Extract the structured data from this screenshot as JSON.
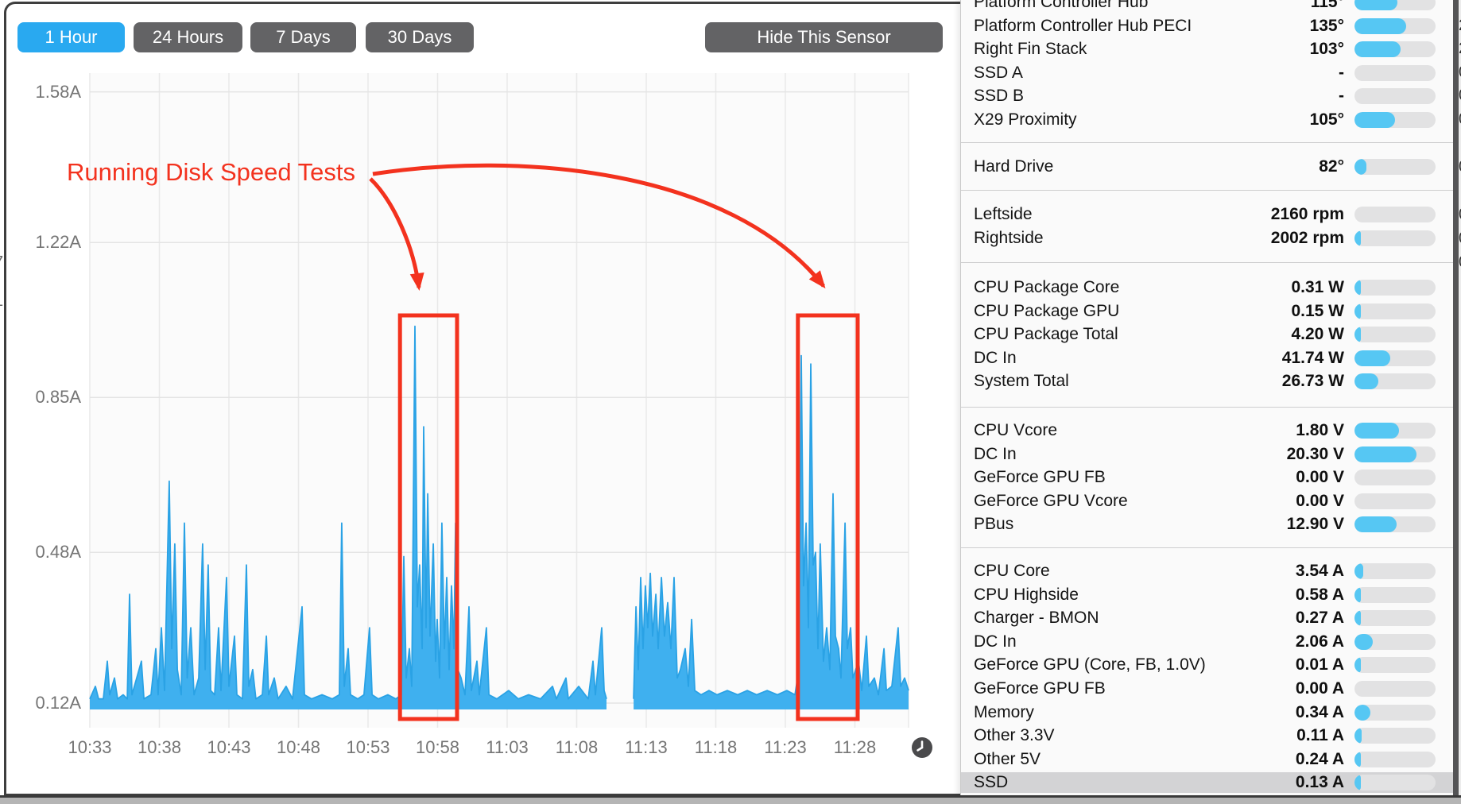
{
  "colors": {
    "accent_blue": "#29a9f0",
    "chart_blue": "#3fb0ef",
    "chart_blue_edge": "#2aa2e5",
    "bar_blue": "#56c7f3",
    "annotation_red": "#f3321e",
    "button_gray": "#636365"
  },
  "toolbar": {
    "range_buttons": [
      {
        "label": "1 Hour",
        "active": true
      },
      {
        "label": "24 Hours",
        "active": false
      },
      {
        "label": "7 Days",
        "active": false
      },
      {
        "label": "30 Days",
        "active": false
      }
    ],
    "hide_button_label": "Hide This Sensor"
  },
  "chart_data": {
    "type": "area",
    "unit": "A",
    "x_ticks": [
      "10:33",
      "10:38",
      "10:43",
      "10:48",
      "10:53",
      "10:58",
      "11:03",
      "11:08",
      "11:13",
      "11:18",
      "11:23",
      "11:28"
    ],
    "y_ticks": [
      "1.58A",
      "1.22A",
      "0.85A",
      "0.48A",
      "0.12A"
    ],
    "y_tick_values": [
      1.58,
      1.22,
      0.85,
      0.48,
      0.12
    ],
    "x_axis_note": "time of day, 5-minute gridlines",
    "grid": true,
    "legend": "none",
    "series_description": "SSD current draw in amps, minutes after 10:00",
    "segments": [
      [
        [
          33,
          0.13
        ],
        [
          33.4,
          0.16
        ],
        [
          33.63,
          0.13
        ],
        [
          33.97,
          0.13
        ],
        [
          34.26,
          0.22
        ],
        [
          34.43,
          0.14
        ],
        [
          34.77,
          0.18
        ],
        [
          35,
          0.13
        ],
        [
          35.4,
          0.14
        ],
        [
          35.69,
          0.13
        ],
        [
          35.86,
          0.38
        ],
        [
          36.03,
          0.14
        ],
        [
          36.37,
          0.18
        ],
        [
          36.71,
          0.22
        ],
        [
          36.89,
          0.13
        ],
        [
          37.4,
          0.14
        ],
        [
          37.74,
          0.25
        ],
        [
          37.91,
          0.14
        ],
        [
          38.14,
          0.3
        ],
        [
          38.37,
          0.15
        ],
        [
          38.71,
          0.65
        ],
        [
          38.89,
          0.25
        ],
        [
          39.11,
          0.5
        ],
        [
          39.29,
          0.2
        ],
        [
          39.57,
          0.14
        ],
        [
          39.8,
          0.55
        ],
        [
          40,
          0.18
        ],
        [
          40.26,
          0.3
        ],
        [
          40.49,
          0.14
        ],
        [
          40.83,
          0.18
        ],
        [
          41.11,
          0.5
        ],
        [
          41.29,
          0.2
        ],
        [
          41.51,
          0.45
        ],
        [
          41.69,
          0.15
        ],
        [
          41.97,
          0.14
        ],
        [
          42.26,
          0.3
        ],
        [
          42.43,
          0.15
        ],
        [
          42.83,
          0.42
        ],
        [
          43,
          0.16
        ],
        [
          43.4,
          0.28
        ],
        [
          43.57,
          0.14
        ],
        [
          43.97,
          0.13
        ],
        [
          44.26,
          0.45
        ],
        [
          44.43,
          0.16
        ],
        [
          44.71,
          0.2
        ],
        [
          44.94,
          0.13
        ],
        [
          45.4,
          0.14
        ],
        [
          45.69,
          0.28
        ],
        [
          45.86,
          0.14
        ],
        [
          46.26,
          0.18
        ],
        [
          46.54,
          0.13
        ],
        [
          47.11,
          0.16
        ],
        [
          47.57,
          0.13
        ],
        [
          48.26,
          0.35
        ],
        [
          48.43,
          0.14
        ],
        [
          48.94,
          0.13
        ],
        [
          49.69,
          0.14
        ],
        [
          50.43,
          0.13
        ],
        [
          50.94,
          0.14
        ],
        [
          51.11,
          0.55
        ],
        [
          51.29,
          0.16
        ],
        [
          51.57,
          0.25
        ],
        [
          51.74,
          0.14
        ],
        [
          52.26,
          0.13
        ],
        [
          52.71,
          0.14
        ],
        [
          53.11,
          0.3
        ],
        [
          53.29,
          0.14
        ],
        [
          53.74,
          0.13
        ],
        [
          54.43,
          0.14
        ],
        [
          55,
          0.13
        ],
        [
          55.4,
          0.14
        ],
        [
          55.57,
          0.47
        ],
        [
          55.74,
          0.18
        ],
        [
          55.97,
          0.25
        ],
        [
          56.14,
          0.16
        ],
        [
          56.37,
          1.02
        ],
        [
          56.54,
          0.35
        ],
        [
          56.71,
          0.45
        ],
        [
          56.89,
          0.25
        ],
        [
          57,
          0.78
        ],
        [
          57.17,
          0.3
        ],
        [
          57.29,
          0.62
        ],
        [
          57.46,
          0.28
        ],
        [
          57.69,
          0.5
        ],
        [
          57.86,
          0.22
        ],
        [
          57.97,
          0.32
        ],
        [
          58.14,
          0.18
        ],
        [
          58.31,
          0.55
        ],
        [
          58.49,
          0.25
        ],
        [
          58.66,
          0.42
        ],
        [
          58.83,
          0.2
        ],
        [
          59,
          0.4
        ],
        [
          59.17,
          0.25
        ],
        [
          59.29,
          0.55
        ],
        [
          59.46,
          0.2
        ],
        [
          59.69,
          0.18
        ],
        [
          59.97,
          0.14
        ],
        [
          60.26,
          0.35
        ],
        [
          60.43,
          0.15
        ],
        [
          60.83,
          0.22
        ],
        [
          61,
          0.14
        ],
        [
          61.51,
          0.3
        ],
        [
          61.69,
          0.14
        ],
        [
          62.26,
          0.13
        ],
        [
          63.11,
          0.15
        ],
        [
          63.8,
          0.13
        ],
        [
          64.54,
          0.14
        ],
        [
          65.4,
          0.13
        ],
        [
          66.26,
          0.16
        ],
        [
          66.54,
          0.13
        ],
        [
          67.23,
          0.18
        ],
        [
          67.4,
          0.13
        ],
        [
          68.14,
          0.16
        ],
        [
          68.83,
          0.13
        ],
        [
          69.17,
          0.22
        ],
        [
          69.34,
          0.14
        ],
        [
          69.8,
          0.3
        ],
        [
          69.97,
          0.15
        ],
        [
          70.14,
          0.13
        ]
      ],
      [
        [
          72.09,
          0.13
        ],
        [
          72.26,
          0.35
        ],
        [
          72.43,
          0.2
        ],
        [
          72.6,
          0.42
        ],
        [
          72.77,
          0.25
        ],
        [
          72.94,
          0.4
        ],
        [
          73.11,
          0.3
        ],
        [
          73.29,
          0.43
        ],
        [
          73.46,
          0.28
        ],
        [
          73.69,
          0.38
        ],
        [
          73.86,
          0.25
        ],
        [
          74.09,
          0.42
        ],
        [
          74.31,
          0.28
        ],
        [
          74.54,
          0.36
        ],
        [
          74.77,
          0.25
        ],
        [
          75,
          0.42
        ],
        [
          75.23,
          0.18
        ],
        [
          75.46,
          0.2
        ],
        [
          75.8,
          0.25
        ],
        [
          76.03,
          0.16
        ],
        [
          76.26,
          0.32
        ],
        [
          76.49,
          0.15
        ],
        [
          76.94,
          0.14
        ],
        [
          77.51,
          0.15
        ],
        [
          78.09,
          0.14
        ],
        [
          78.83,
          0.15
        ],
        [
          79.57,
          0.14
        ],
        [
          80.26,
          0.15
        ],
        [
          80.94,
          0.14
        ],
        [
          81.69,
          0.15
        ],
        [
          82.43,
          0.14
        ],
        [
          83.11,
          0.15
        ],
        [
          83.69,
          0.14
        ],
        [
          83.97,
          0.2
        ],
        [
          84.14,
          0.95
        ],
        [
          84.31,
          0.4
        ],
        [
          84.49,
          0.55
        ],
        [
          84.66,
          0.3
        ],
        [
          84.83,
          0.93
        ],
        [
          85,
          0.45
        ],
        [
          85.17,
          0.48
        ],
        [
          85.34,
          0.25
        ],
        [
          85.51,
          0.5
        ],
        [
          85.74,
          0.22
        ],
        [
          85.97,
          0.3
        ],
        [
          86.2,
          0.2
        ],
        [
          86.43,
          0.62
        ],
        [
          86.6,
          0.28
        ],
        [
          86.83,
          0.25
        ],
        [
          87,
          0.18
        ],
        [
          87.29,
          0.55
        ],
        [
          87.46,
          0.25
        ],
        [
          87.69,
          0.3
        ],
        [
          87.86,
          0.18
        ],
        [
          88.26,
          0.22
        ],
        [
          88.49,
          0.15
        ],
        [
          88.83,
          0.28
        ],
        [
          89,
          0.16
        ],
        [
          89.4,
          0.18
        ],
        [
          89.69,
          0.14
        ],
        [
          90.09,
          0.25
        ],
        [
          90.26,
          0.15
        ],
        [
          90.66,
          0.16
        ],
        [
          91.11,
          0.3
        ],
        [
          91.29,
          0.16
        ],
        [
          91.57,
          0.18
        ],
        [
          91.86,
          0.15
        ]
      ]
    ],
    "annotations": {
      "label": "Running Disk Speed Tests",
      "boxes": [
        {
          "t_from": 55.3,
          "t_to": 59.4
        },
        {
          "t_from": 83.9,
          "t_to": 88.2
        }
      ]
    }
  },
  "sensor_panel": {
    "sections": [
      {
        "name": "temperatures",
        "rows": [
          {
            "label": "Platform Controller Hub",
            "value": "115°",
            "bar": 0.53
          },
          {
            "label": "Platform Controller Hub PECI",
            "value": "135°",
            "bar": 0.64
          },
          {
            "label": "Right Fin Stack",
            "value": "103°",
            "bar": 0.57
          },
          {
            "label": "SSD A",
            "value": "-",
            "bar": 0
          },
          {
            "label": "SSD B",
            "value": "-",
            "bar": 0
          },
          {
            "label": "X29 Proximity",
            "value": "105°",
            "bar": 0.5
          }
        ]
      },
      {
        "name": "hard-drive",
        "rows": [
          {
            "label": "Hard Drive",
            "value": "82°",
            "bar": 0.15
          }
        ]
      },
      {
        "name": "fans",
        "rows": [
          {
            "label": "Leftside",
            "value": "2160 rpm",
            "bar": 0
          },
          {
            "label": "Rightside",
            "value": "2002 rpm",
            "bar": 0.05
          }
        ]
      },
      {
        "name": "power",
        "rows": [
          {
            "label": "CPU Package Core",
            "value": "0.31 W",
            "bar": 0.03
          },
          {
            "label": "CPU Package GPU",
            "value": "0.15 W",
            "bar": 0.02
          },
          {
            "label": "CPU Package Total",
            "value": "4.20 W",
            "bar": 0.06
          },
          {
            "label": "DC In",
            "value": "41.74 W",
            "bar": 0.44
          },
          {
            "label": "System Total",
            "value": "26.73 W",
            "bar": 0.29
          }
        ]
      },
      {
        "name": "voltage",
        "rows": [
          {
            "label": "CPU Vcore",
            "value": "1.80 V",
            "bar": 0.55
          },
          {
            "label": "DC In",
            "value": "20.30 V",
            "bar": 0.76
          },
          {
            "label": "GeForce GPU FB",
            "value": "0.00 V",
            "bar": 0
          },
          {
            "label": "GeForce GPU Vcore",
            "value": "0.00 V",
            "bar": 0
          },
          {
            "label": "PBus",
            "value": "12.90 V",
            "bar": 0.52
          }
        ]
      },
      {
        "name": "current",
        "rows": [
          {
            "label": "CPU Core",
            "value": "3.54 A",
            "bar": 0.11
          },
          {
            "label": "CPU Highside",
            "value": "0.58 A",
            "bar": 0.07
          },
          {
            "label": "Charger - BMON",
            "value": "0.27 A",
            "bar": 0.03
          },
          {
            "label": "DC In",
            "value": "2.06 A",
            "bar": 0.23
          },
          {
            "label": "GeForce GPU (Core, FB, 1.0V)",
            "value": "0.01 A",
            "bar": 0.02
          },
          {
            "label": "GeForce GPU FB",
            "value": "0.00 A",
            "bar": 0
          },
          {
            "label": "Memory",
            "value": "0.34 A",
            "bar": 0.2
          },
          {
            "label": "Other 3.3V",
            "value": "0.11 A",
            "bar": 0.09
          },
          {
            "label": "Other 5V",
            "value": "0.24 A",
            "bar": 0.07
          },
          {
            "label": "SSD",
            "value": "0.13 A",
            "bar": 0.08,
            "selected": true
          }
        ]
      }
    ]
  },
  "edge_fragments": {
    "right_digits": [
      "2",
      "2",
      "0",
      "0",
      "0",
      "0",
      "0",
      "0",
      "0"
    ],
    "left_chars": [
      "(",
      "7",
      "1"
    ]
  }
}
